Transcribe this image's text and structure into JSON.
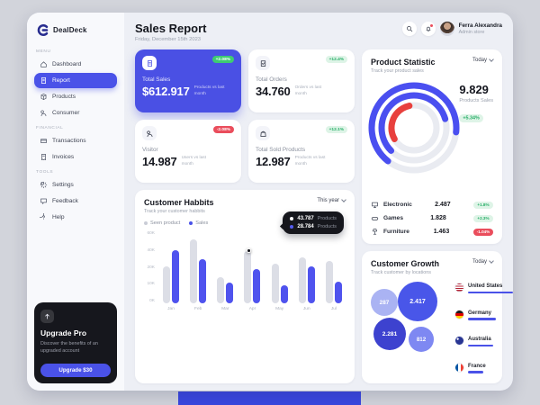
{
  "app": {
    "name": "DealDeck"
  },
  "colors": {
    "primary": "#4a52e8",
    "bar_gray": "#dcdee6",
    "bar_blue": "#4f53ee",
    "green_badge": "#3ecb72",
    "red_badge": "#ea4d5c",
    "dark": "#16171d",
    "arc_red": "#e8403d"
  },
  "sidebar": {
    "logo": "DealDeck",
    "sections": [
      {
        "label": "MENU",
        "items": [
          {
            "label": "Dashboard",
            "icon": "dashboard-icon",
            "active": false
          },
          {
            "label": "Report",
            "icon": "report-icon",
            "active": true
          },
          {
            "label": "Products",
            "icon": "products-icon",
            "active": false
          },
          {
            "label": "Consumer",
            "icon": "consumer-icon",
            "active": false
          }
        ]
      },
      {
        "label": "FINANCIAL",
        "items": [
          {
            "label": "Transactions",
            "icon": "transactions-icon",
            "active": false
          },
          {
            "label": "Invoices",
            "icon": "invoices-icon",
            "active": false
          }
        ]
      },
      {
        "label": "TOOLS",
        "items": [
          {
            "label": "Settings",
            "icon": "settings-icon",
            "active": false
          },
          {
            "label": "Feedback",
            "icon": "feedback-icon",
            "active": false
          },
          {
            "label": "Help",
            "icon": "help-icon",
            "active": false
          }
        ]
      }
    ],
    "upgrade": {
      "title": "Upgrade Pro",
      "description": "Discover the benefits of an upgraded account",
      "button": "Upgrade $30"
    }
  },
  "header": {
    "title": "Sales Report",
    "date": "Friday, December 15th 2023",
    "icons": [
      "search-icon",
      "bell-icon"
    ],
    "user": {
      "name": "Ferra Alexandra",
      "role": "Admin store"
    }
  },
  "stats": [
    {
      "title": "Total Sales",
      "value": "$612.917",
      "caption": "Products vs last month",
      "badge": "+2.08%",
      "variant": "primary",
      "badge_style": "pos-solid",
      "icon": "sales-icon"
    },
    {
      "title": "Total Orders",
      "value": "34.760",
      "caption": "Orders vs last month",
      "badge": "+12.4%",
      "variant": "plain",
      "badge_style": "pos-light",
      "icon": "orders-icon"
    },
    {
      "title": "Visitor",
      "value": "14.987",
      "caption": "Users vs last month",
      "badge": "-2.08%",
      "variant": "plain",
      "badge_style": "neg-solid",
      "icon": "visitor-icon"
    },
    {
      "title": "Total Sold Products",
      "value": "12.987",
      "caption": "Products vs last month",
      "badge": "+12.1%",
      "variant": "plain",
      "badge_style": "pos-light",
      "icon": "sold-icon"
    }
  ],
  "product_statistic": {
    "title": "Product Statistic",
    "subtitle": "Track your product sales",
    "period": "Today",
    "total": "9.829",
    "total_label": "Products Sales",
    "total_badge": "+5.34%",
    "items": [
      {
        "label": "Electronic",
        "value": "2.487",
        "badge": "+1.8%",
        "badge_style": "pos-light",
        "icon": "monitor-icon"
      },
      {
        "label": "Games",
        "value": "1.828",
        "badge": "+2.3%",
        "badge_style": "pos-light",
        "icon": "gamepad-icon"
      },
      {
        "label": "Furniture",
        "value": "1.463",
        "badge": "-1.04%",
        "badge_style": "neg-solid",
        "icon": "lamp-icon"
      }
    ]
  },
  "customer_habits": {
    "title": "Customer Habbits",
    "subtitle": "Track your customer habbits",
    "period": "This year",
    "legend": [
      {
        "label": "Seen product",
        "color": "#c9ccd6"
      },
      {
        "label": "Sales",
        "color": "#4a52e8"
      }
    ],
    "tooltip": [
      {
        "value": "43.787",
        "unit": "Products",
        "dot": "#ffffff"
      },
      {
        "value": "28.784",
        "unit": "Products",
        "dot": "#555cf0"
      }
    ]
  },
  "customer_growth": {
    "title": "Customer Growth",
    "subtitle": "Track customer by locations",
    "period": "Today",
    "bubbles": [
      {
        "value": "2.417"
      },
      {
        "value": "287"
      },
      {
        "value": "2.281"
      },
      {
        "value": "812"
      }
    ],
    "countries": [
      {
        "name": "United States",
        "bar": 100
      },
      {
        "name": "Germany",
        "bar": 62
      },
      {
        "name": "Australia",
        "bar": 55
      },
      {
        "name": "France",
        "bar": 33
      }
    ]
  },
  "chart_data": [
    {
      "type": "bar",
      "title": "Customer Habbits",
      "categories": [
        "Jan",
        "Feb",
        "Mar",
        "Apr",
        "May",
        "Jun",
        "Jul"
      ],
      "series": [
        {
          "name": "Seen product",
          "values": [
            31000,
            53000,
            22000,
            43787,
            33000,
            38000,
            35000
          ]
        },
        {
          "name": "Sales",
          "values": [
            44000,
            37000,
            17000,
            28784,
            15000,
            31000,
            18000
          ]
        }
      ],
      "ylabels": [
        "60K",
        "40K",
        "20K",
        "10K",
        "0K"
      ],
      "ylim": [
        0,
        60000
      ],
      "legend_position": "top-left",
      "tooltip_month": "Apr"
    },
    {
      "type": "radial",
      "title": "Product Statistic",
      "series": [
        {
          "name": "Electronic",
          "value": 2487,
          "color": "#4a4ff0"
        },
        {
          "name": "Games",
          "value": 1828,
          "color": "#4a4ff0"
        },
        {
          "name": "Furniture",
          "value": 1463,
          "color": "#e8403d"
        }
      ],
      "total": 9829
    },
    {
      "type": "bubble",
      "title": "Customer Growth",
      "points": [
        2417,
        287,
        2281,
        812
      ]
    }
  ]
}
